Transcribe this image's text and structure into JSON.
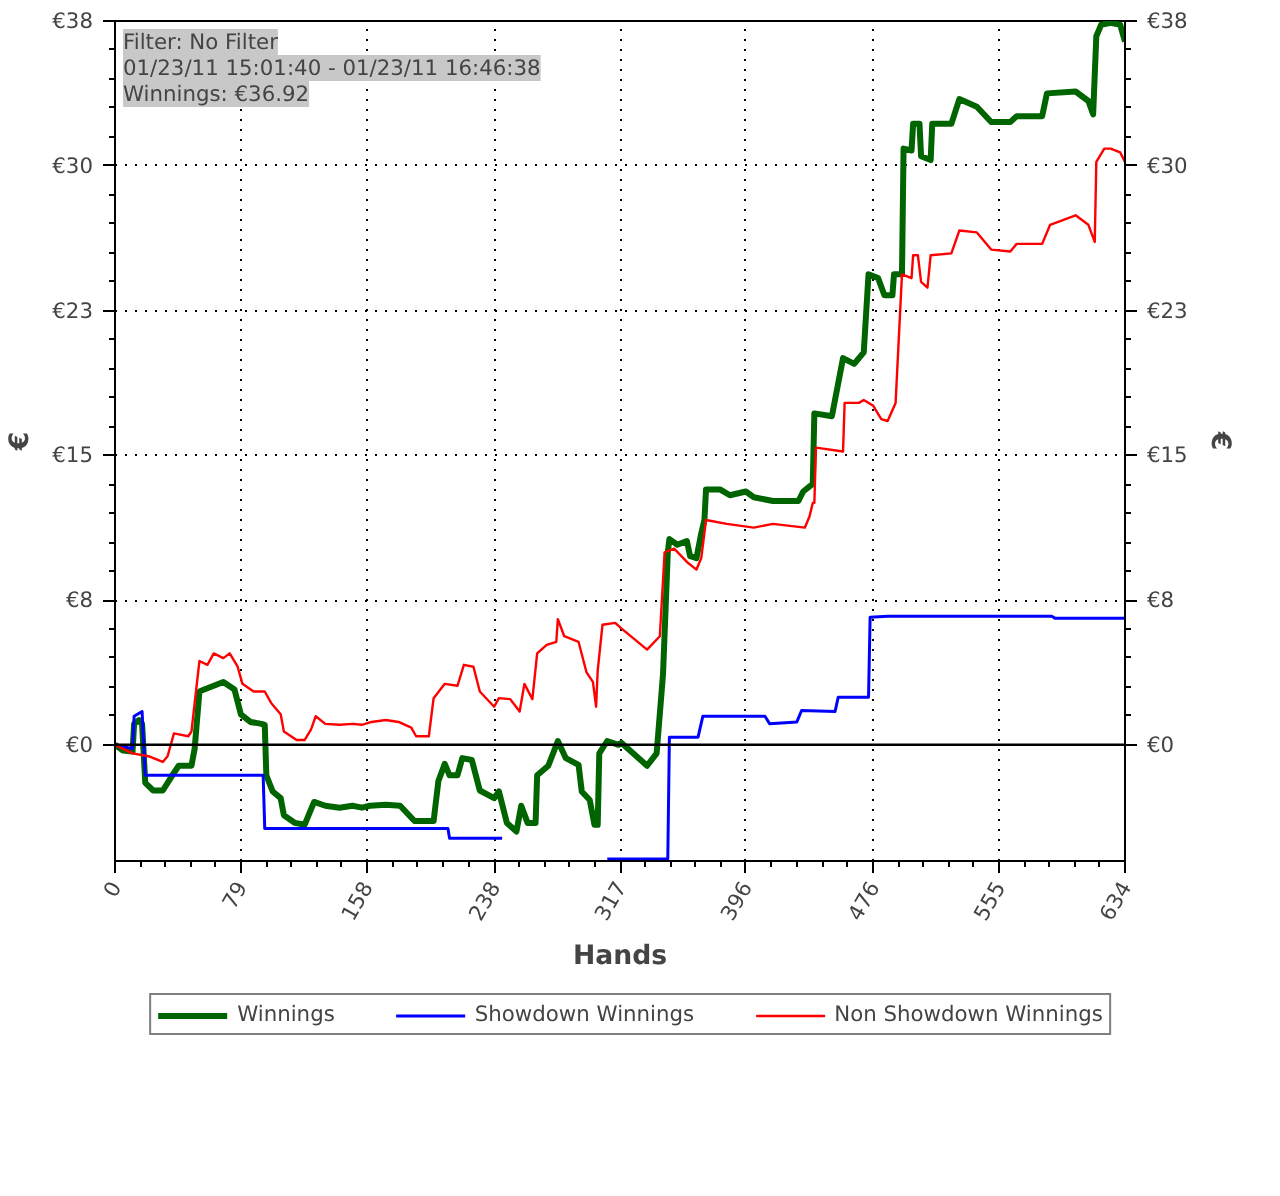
{
  "chart_data": {
    "type": "line",
    "xlabel": "Hands",
    "ylabel": "€",
    "y2label": "€",
    "annotations": [
      "Filter: No Filter",
      "01/23/11 15:01:40 - 01/23/11 16:46:38",
      "Winnings: €36.92"
    ],
    "xlim": [
      0,
      634
    ],
    "xticks": [
      0,
      79,
      158,
      238,
      317,
      396,
      476,
      555,
      634
    ],
    "ylim": [
      -6.1,
      38
    ],
    "yticks": [
      {
        "value": 0,
        "label": "€0"
      },
      {
        "value": 7.6,
        "label": "€8"
      },
      {
        "value": 15.2,
        "label": "€15"
      },
      {
        "value": 22.8,
        "label": "€23"
      },
      {
        "value": 30.4,
        "label": "€30"
      },
      {
        "value": 38,
        "label": "€38"
      }
    ],
    "y2lim": [
      -6.1,
      38
    ],
    "y2ticks": [
      {
        "value": 0,
        "label": "€0"
      },
      {
        "value": 7.6,
        "label": "€8"
      },
      {
        "value": 15.2,
        "label": "€15"
      },
      {
        "value": 22.8,
        "label": "€23"
      },
      {
        "value": 30.4,
        "label": "€30"
      },
      {
        "value": 38,
        "label": "€38"
      }
    ],
    "grid": true,
    "legend": "bottom",
    "line_style": "solid",
    "ref_lines": [
      {
        "axis": "y",
        "value": 0,
        "label": null,
        "color": "#000000"
      }
    ],
    "series": [
      {
        "name": "Winnings",
        "color": "#006400",
        "x": [
          0,
          5,
          11,
          12,
          15,
          17,
          19,
          24,
          30,
          36,
          40,
          48,
          50,
          53,
          56,
          62,
          68,
          75,
          79,
          85,
          92,
          94,
          95,
          99,
          104,
          106,
          113,
          119,
          125,
          132,
          141,
          149,
          155,
          160,
          170,
          179,
          188,
          200,
          203,
          207,
          210,
          215,
          218,
          224,
          229,
          238,
          241,
          246,
          252,
          255,
          259,
          264,
          265,
          272,
          278,
          283,
          291,
          293,
          298,
          301,
          303,
          304,
          309,
          316,
          318,
          334,
          340,
          344,
          347,
          348,
          353,
          359,
          361,
          365,
          368,
          370,
          371,
          380,
          386,
          396,
          401,
          413,
          429,
          432,
          438,
          439,
          450,
          457,
          464,
          470,
          473,
          479,
          483,
          488,
          489,
          494,
          495,
          500,
          501,
          505,
          506,
          512,
          513,
          525,
          530,
          541,
          550,
          562,
          566,
          582,
          585,
          603,
          611,
          614,
          616,
          619,
          625,
          631,
          634
        ],
        "values": [
          0,
          -0.3,
          -0.35,
          1.1,
          1.3,
          1.1,
          -2.0,
          -2.4,
          -2.4,
          -1.6,
          -1.1,
          -1.1,
          -0.2,
          2.8,
          2.9,
          3.1,
          3.3,
          2.9,
          1.6,
          1.2,
          1.1,
          1.05,
          -1.6,
          -2.45,
          -2.8,
          -3.7,
          -4.1,
          -4.2,
          -3.0,
          -3.2,
          -3.3,
          -3.2,
          -3.3,
          -3.2,
          -3.15,
          -3.2,
          -4.0,
          -4.0,
          -1.9,
          -1.0,
          -1.6,
          -1.6,
          -0.7,
          -0.8,
          -2.4,
          -2.8,
          -2.45,
          -4.1,
          -4.55,
          -3.2,
          -4.1,
          -4.1,
          -1.6,
          -1.1,
          0.2,
          -0.7,
          -1.05,
          -2.45,
          -2.9,
          -4.2,
          -4.2,
          -0.45,
          0.2,
          0,
          0.1,
          -1.1,
          -0.45,
          3.7,
          10.1,
          10.8,
          10.5,
          10.7,
          9.9,
          9.8,
          11.1,
          11.8,
          13.4,
          13.4,
          13.1,
          13.3,
          13.0,
          12.8,
          12.8,
          13.3,
          13.7,
          17.4,
          17.25,
          20.3,
          20.0,
          20.6,
          24.7,
          24.5,
          23.6,
          23.6,
          24.7,
          24.7,
          31.3,
          31.2,
          32.6,
          32.6,
          30.9,
          30.7,
          32.6,
          32.6,
          33.9,
          33.5,
          32.7,
          32.7,
          33.0,
          33.0,
          34.2,
          34.3,
          33.8,
          33.1,
          37.2,
          37.8,
          37.9,
          37.8,
          36.92
        ]
      },
      {
        "name": "Showdown Winnings",
        "color": "#0000ff",
        "x": [
          0,
          11,
          12,
          17,
          19,
          93,
          94,
          209,
          210,
          243,
          245,
          309,
          347,
          348,
          366,
          369,
          408,
          411,
          428,
          431,
          452,
          454,
          473,
          474,
          485,
          588,
          590,
          634
        ],
        "values": [
          0,
          -0.2,
          1.5,
          1.75,
          -1.6,
          -1.6,
          -4.4,
          -4.4,
          -4.9,
          -4.9,
          null,
          -6.0,
          -6.0,
          0.4,
          0.4,
          1.5,
          1.5,
          1.1,
          1.2,
          1.8,
          1.75,
          2.5,
          2.5,
          6.7,
          6.75,
          6.75,
          6.65,
          6.65
        ]
      },
      {
        "name": "Non Showdown Winnings",
        "color": "#ff0000",
        "x": [
          0,
          11,
          21,
          30,
          33,
          37,
          46,
          48,
          53,
          58,
          62,
          68,
          72,
          77,
          80,
          87,
          94,
          98,
          104,
          106,
          114,
          119,
          123,
          126,
          132,
          141,
          149,
          155,
          161,
          170,
          178,
          186,
          189,
          197,
          200,
          207,
          215,
          219,
          225,
          229,
          238,
          241,
          248,
          254,
          257,
          262,
          265,
          271,
          277,
          278,
          282,
          291,
          296,
          300,
          302,
          303,
          306,
          314,
          318,
          334,
          342,
          345,
          351,
          359,
          365,
          368,
          371,
          384,
          401,
          413,
          433,
          436,
          438,
          439,
          440,
          457,
          458,
          467,
          470,
          476,
          481,
          485,
          490,
          494,
          500,
          501,
          504,
          506,
          510,
          512,
          525,
          530,
          541,
          550,
          562,
          566,
          582,
          587,
          603,
          611,
          615,
          616,
          621,
          625,
          631,
          634
        ],
        "values": [
          0,
          -0.45,
          -0.6,
          -0.9,
          -0.6,
          0.6,
          0.45,
          0.7,
          4.4,
          4.2,
          4.8,
          4.55,
          4.8,
          4.1,
          3.2,
          2.8,
          2.8,
          2.2,
          1.6,
          0.7,
          0.25,
          0.25,
          0.8,
          1.5,
          1.1,
          1.05,
          1.1,
          1.05,
          1.2,
          1.3,
          1.2,
          0.9,
          0.45,
          0.45,
          2.45,
          3.2,
          3.1,
          4.2,
          4.1,
          2.8,
          2.0,
          2.45,
          2.4,
          1.75,
          3.2,
          2.4,
          4.8,
          5.25,
          5.4,
          6.6,
          5.7,
          5.4,
          3.8,
          3.3,
          2.0,
          3.9,
          6.3,
          6.4,
          6.1,
          5.0,
          5.7,
          10.1,
          10.3,
          9.6,
          9.2,
          9.8,
          11.8,
          11.6,
          11.4,
          11.6,
          11.4,
          12.0,
          12.7,
          12.7,
          15.6,
          15.4,
          17.95,
          17.95,
          18.1,
          17.8,
          17.1,
          17.0,
          17.95,
          24.7,
          24.5,
          25.7,
          25.7,
          24.3,
          24.0,
          25.7,
          25.8,
          27.0,
          26.9,
          26.0,
          25.9,
          26.3,
          26.3,
          27.3,
          27.8,
          27.3,
          26.4,
          30.6,
          31.3,
          31.3,
          31.1,
          30.6
        ]
      }
    ]
  }
}
